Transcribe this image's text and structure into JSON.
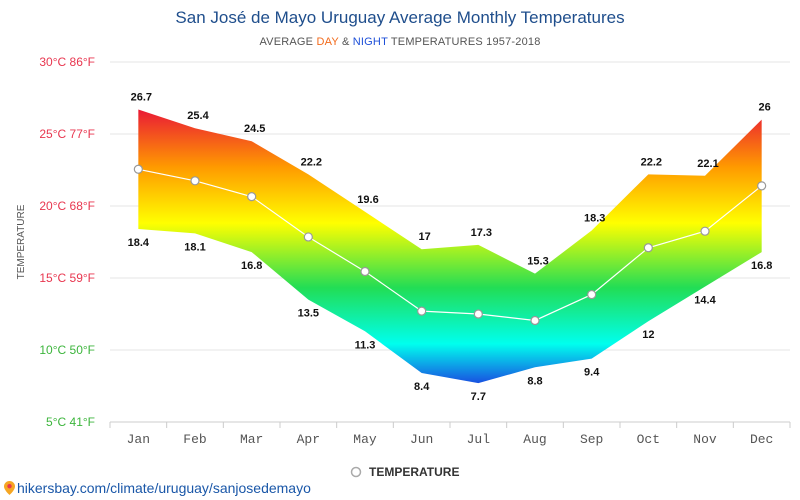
{
  "header": {
    "title": "San José de Mayo Uruguay Average Monthly Temperatures",
    "subtitle_prefix": "AVERAGE",
    "subtitle_day": "DAY",
    "subtitle_and": "&",
    "subtitle_night": "NIGHT",
    "subtitle_suffix": "TEMPERATURES 1957-2018"
  },
  "source": {
    "url_text": "hikersbay.com/climate/uruguay/sanjosedemayo"
  },
  "colors": {
    "axis_label": "#e8364f",
    "tick_celsius": [
      "#3cb53c",
      "#3cb53c",
      "#e8364f",
      "#e8364f",
      "#e8364f",
      "#e8364f"
    ],
    "grid": "#e6e6e6",
    "avg_line": "#ffffff",
    "gradient_top": "#e8103a",
    "gradient_upper": "#ff9a00",
    "gradient_mid": "#ffff00",
    "gradient_green": "#22dd55",
    "gradient_cyan": "#00ffee",
    "gradient_bottom": "#1a44e0"
  },
  "chart_data": {
    "type": "area",
    "title": "San José de Mayo Uruguay Average Monthly Temperatures",
    "ylabel": "TEMPERATURE",
    "ylim": [
      5,
      30
    ],
    "yticks": [
      {
        "value": 5,
        "label": "5°C 41°F"
      },
      {
        "value": 10,
        "label": "10°C 50°F"
      },
      {
        "value": 15,
        "label": "15°C 59°F"
      },
      {
        "value": 20,
        "label": "20°C 68°F"
      },
      {
        "value": 25,
        "label": "25°C 77°F"
      },
      {
        "value": 30,
        "label": "30°C 86°F"
      }
    ],
    "categories": [
      "Jan",
      "Feb",
      "Mar",
      "Apr",
      "May",
      "Jun",
      "Jul",
      "Aug",
      "Sep",
      "Oct",
      "Nov",
      "Dec"
    ],
    "day": [
      26.7,
      25.4,
      24.5,
      22.2,
      19.6,
      17,
      17.3,
      15.3,
      18.3,
      22.2,
      22.1,
      26
    ],
    "night": [
      18.4,
      18.1,
      16.8,
      13.5,
      11.3,
      8.4,
      7.7,
      8.8,
      9.4,
      12,
      14.4,
      16.8
    ],
    "day_labels": [
      "26.7",
      "25.4",
      "24.5",
      "22.2",
      "19.6",
      "17",
      "17.3",
      "15.3",
      "18.3",
      "22.2",
      "22.1",
      "26"
    ],
    "night_labels": [
      "18.4",
      "18.1",
      "16.8",
      "13.5",
      "11.3",
      "8.4",
      "7.7",
      "8.8",
      "9.4",
      "12",
      "14.4",
      "16.8"
    ],
    "average": [
      22.55,
      21.75,
      20.65,
      17.85,
      15.45,
      12.7,
      12.5,
      12.05,
      13.85,
      17.1,
      18.25,
      21.4
    ],
    "legend": {
      "label": "TEMPERATURE",
      "position": "bottom-center"
    },
    "grid": true
  }
}
